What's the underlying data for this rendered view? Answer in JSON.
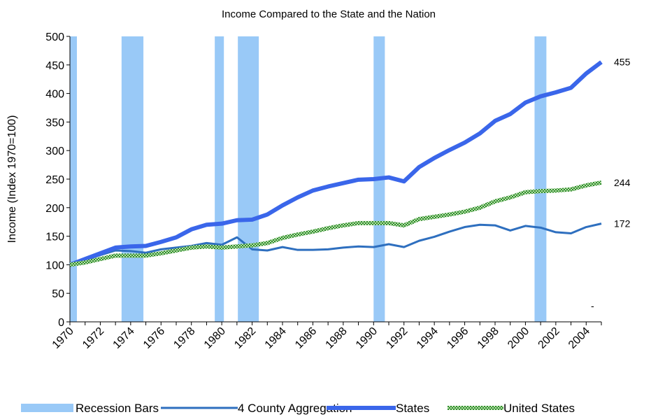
{
  "chart_data": {
    "type": "line",
    "title": "Income Compared to the State and the Nation",
    "y_label": "Income (Index 1970=100)",
    "x": [
      1970,
      1971,
      1972,
      1973,
      1974,
      1975,
      1976,
      1977,
      1978,
      1979,
      1980,
      1981,
      1982,
      1983,
      1984,
      1985,
      1986,
      1987,
      1988,
      1989,
      1990,
      1991,
      1992,
      1993,
      1994,
      1995,
      1996,
      1997,
      1998,
      1999,
      2000,
      2001,
      2002,
      2003,
      2004,
      2005
    ],
    "xlim": [
      1970,
      2005
    ],
    "xticks": [
      1970,
      1972,
      1974,
      1976,
      1978,
      1980,
      1982,
      1984,
      1986,
      1988,
      1990,
      1992,
      1994,
      1996,
      1998,
      2000,
      2002,
      2004
    ],
    "ylim": [
      0,
      500
    ],
    "yticks": [
      0,
      50,
      100,
      150,
      200,
      250,
      300,
      350,
      400,
      450,
      500
    ],
    "recessions": {
      "name": "Recession Bars",
      "color": "#99c9f7",
      "ranges": [
        [
          1970,
          1970.46
        ],
        [
          1973.4,
          1974.84
        ],
        [
          1979.54,
          1980.14
        ],
        [
          1981.06,
          1982.44
        ],
        [
          1990.0,
          1990.74
        ],
        [
          2000.6,
          2001.38
        ]
      ]
    },
    "series": [
      {
        "name": "4 County Aggregation",
        "color": "#2e6fbf",
        "width": 3,
        "values": [
          100,
          108,
          117,
          125,
          124,
          121,
          127,
          130,
          133,
          138,
          135,
          148,
          127,
          125,
          131,
          126,
          126,
          127,
          130,
          132,
          131,
          136,
          131,
          142,
          149,
          158,
          166,
          170,
          169,
          160,
          168,
          165,
          157,
          155,
          166,
          172
        ]
      },
      {
        "name": "States",
        "color": "#3a66ea",
        "width": 6,
        "values": [
          100,
          110,
          120,
          130,
          132,
          133,
          140,
          148,
          162,
          170,
          172,
          178,
          179,
          188,
          204,
          218,
          230,
          237,
          243,
          249,
          250,
          253,
          246,
          271,
          287,
          301,
          314,
          330,
          352,
          364,
          384,
          395,
          402,
          410,
          435,
          455
        ]
      },
      {
        "name": "United States",
        "color": "#2e8b2e",
        "width": 6,
        "pattern": "checker",
        "values": [
          100,
          104,
          110,
          116,
          116,
          116,
          120,
          125,
          130,
          132,
          130,
          132,
          134,
          138,
          147,
          153,
          158,
          164,
          169,
          173,
          173,
          173,
          169,
          180,
          184,
          188,
          193,
          200,
          211,
          218,
          227,
          229,
          230,
          232,
          239,
          244
        ]
      }
    ],
    "annotation": "-"
  }
}
